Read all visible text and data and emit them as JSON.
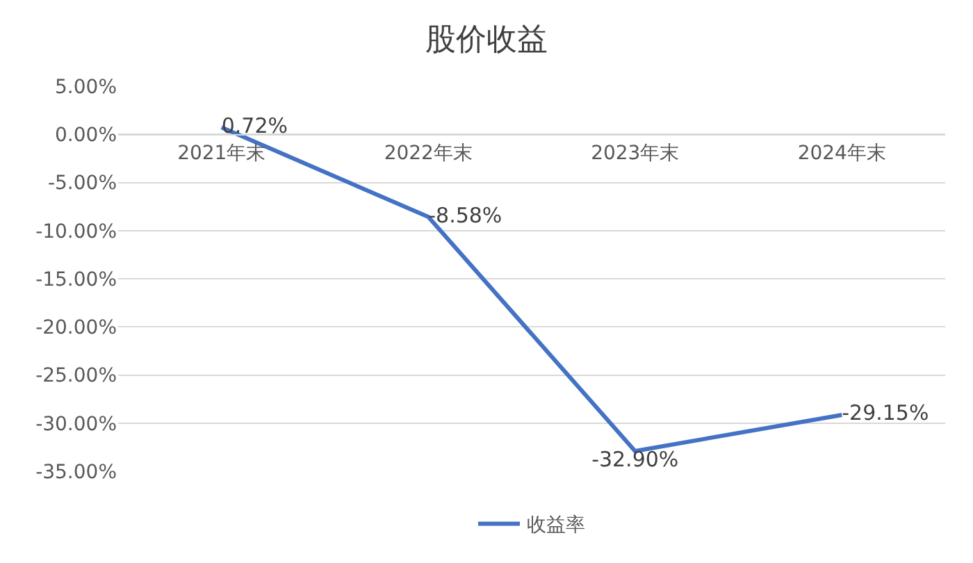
{
  "chart_data": {
    "type": "line",
    "title": "股价收益",
    "categories": [
      "2021年末",
      "2022年末",
      "2023年末",
      "2024年末"
    ],
    "series": [
      {
        "name": "收益率",
        "color": "#4472c4",
        "values": [
          0.72,
          -8.58,
          -32.9,
          -29.15
        ],
        "value_labels": [
          "0.72%",
          "-8.58%",
          "-32.90%",
          "-29.15%"
        ]
      }
    ],
    "ylim": [
      -35,
      5
    ],
    "yticks": [
      {
        "value": 5,
        "label": "5.00%"
      },
      {
        "value": 0,
        "label": "0.00%"
      },
      {
        "value": -5,
        "label": "-5.00%"
      },
      {
        "value": -10,
        "label": "-10.00%"
      },
      {
        "value": -15,
        "label": "-15.00%"
      },
      {
        "value": -20,
        "label": "-20.00%"
      },
      {
        "value": -25,
        "label": "-25.00%"
      },
      {
        "value": -30,
        "label": "-30.00%"
      },
      {
        "value": -35,
        "label": "-35.00%"
      }
    ],
    "grid": "y",
    "legend": "bottom",
    "marker": "none",
    "line_style": "solid"
  }
}
